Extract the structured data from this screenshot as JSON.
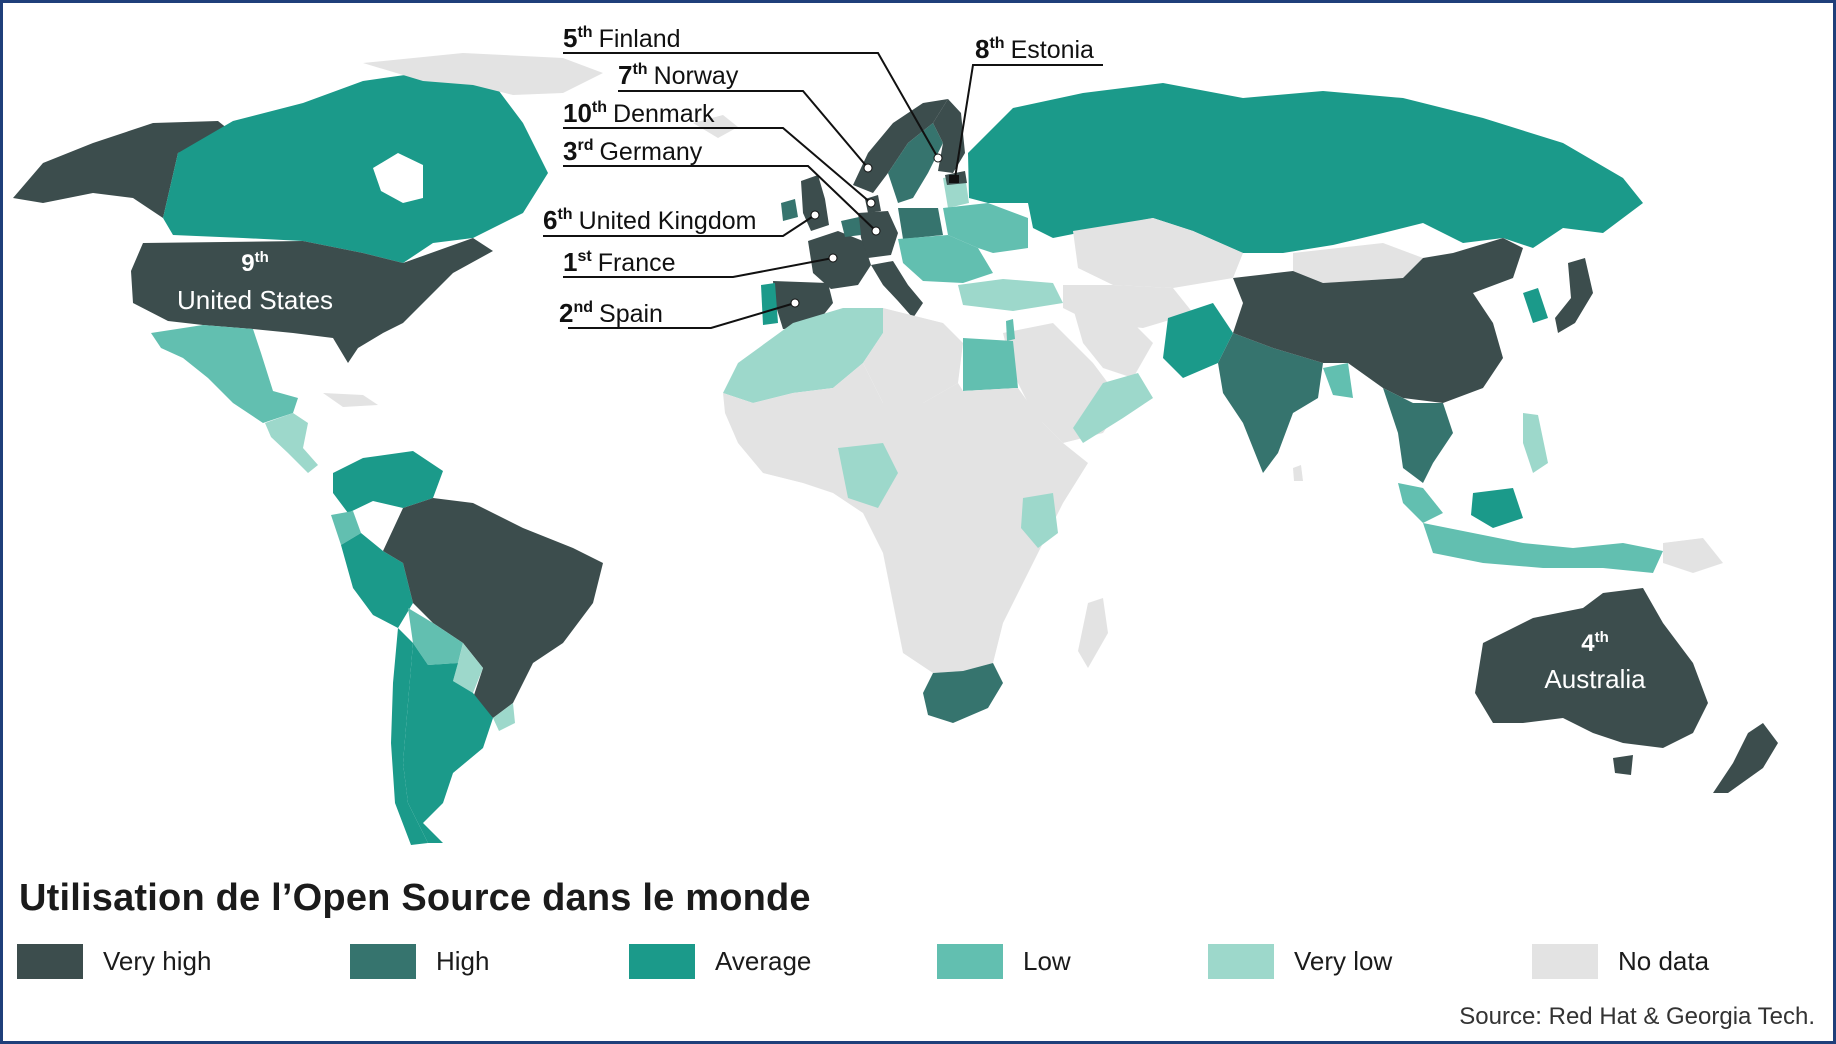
{
  "title": "Utilisation de l’Open Source dans le monde",
  "source": "Source: Red Hat & Georgia Tech.",
  "legend": [
    {
      "label": "Very high",
      "color": "#3c4d4d"
    },
    {
      "label": "High",
      "color": "#36746e"
    },
    {
      "label": "Average",
      "color": "#1b9a8a"
    },
    {
      "label": "Low",
      "color": "#62bfb0"
    },
    {
      "label": "Very low",
      "color": "#9dd8cb"
    },
    {
      "label": "No data",
      "color": "#e3e3e3"
    }
  ],
  "callouts": [
    {
      "rank": "5",
      "suffix": "th",
      "country": "Finland"
    },
    {
      "rank": "7",
      "suffix": "th",
      "country": "Norway"
    },
    {
      "rank": "10",
      "suffix": "th",
      "country": "Denmark"
    },
    {
      "rank": "3",
      "suffix": "rd",
      "country": "Germany"
    },
    {
      "rank": "6",
      "suffix": "th",
      "country": "United Kingdom"
    },
    {
      "rank": "1",
      "suffix": "st",
      "country": "France"
    },
    {
      "rank": "2",
      "suffix": "nd",
      "country": "Spain"
    },
    {
      "rank": "8",
      "suffix": "th",
      "country": "Estonia"
    }
  ],
  "map_labels": [
    {
      "rank": "9",
      "suffix": "th",
      "country": "United States"
    },
    {
      "rank": "4",
      "suffix": "th",
      "country": "Australia"
    }
  ]
}
